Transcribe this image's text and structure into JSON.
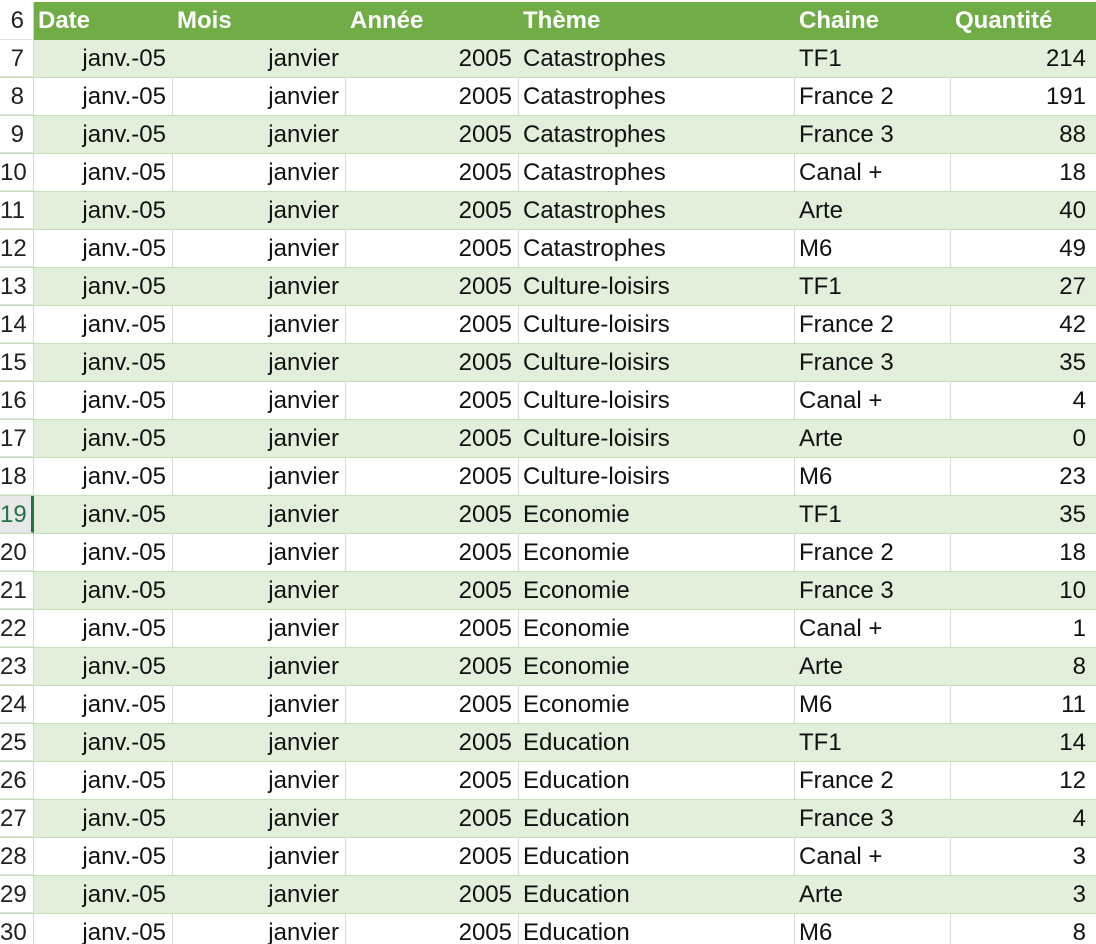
{
  "headers": {
    "row_number": "6",
    "date": "Date",
    "mois": "Mois",
    "annee": "Année",
    "theme": "Thème",
    "chaine": "Chaine",
    "quantite": "Quantité"
  },
  "active_row": "19",
  "rows": [
    {
      "n": "7",
      "date": "janv.-05",
      "mois": "janvier",
      "annee": "2005",
      "theme": "Catastrophes",
      "chaine": "TF1",
      "quantite": "214"
    },
    {
      "n": "8",
      "date": "janv.-05",
      "mois": "janvier",
      "annee": "2005",
      "theme": "Catastrophes",
      "chaine": "France 2",
      "quantite": "191"
    },
    {
      "n": "9",
      "date": "janv.-05",
      "mois": "janvier",
      "annee": "2005",
      "theme": "Catastrophes",
      "chaine": "France 3",
      "quantite": "88"
    },
    {
      "n": "10",
      "date": "janv.-05",
      "mois": "janvier",
      "annee": "2005",
      "theme": "Catastrophes",
      "chaine": "Canal +",
      "quantite": "18"
    },
    {
      "n": "11",
      "date": "janv.-05",
      "mois": "janvier",
      "annee": "2005",
      "theme": "Catastrophes",
      "chaine": "Arte",
      "quantite": "40"
    },
    {
      "n": "12",
      "date": "janv.-05",
      "mois": "janvier",
      "annee": "2005",
      "theme": "Catastrophes",
      "chaine": "M6",
      "quantite": "49"
    },
    {
      "n": "13",
      "date": "janv.-05",
      "mois": "janvier",
      "annee": "2005",
      "theme": "Culture-loisirs",
      "chaine": "TF1",
      "quantite": "27"
    },
    {
      "n": "14",
      "date": "janv.-05",
      "mois": "janvier",
      "annee": "2005",
      "theme": "Culture-loisirs",
      "chaine": "France 2",
      "quantite": "42"
    },
    {
      "n": "15",
      "date": "janv.-05",
      "mois": "janvier",
      "annee": "2005",
      "theme": "Culture-loisirs",
      "chaine": "France 3",
      "quantite": "35"
    },
    {
      "n": "16",
      "date": "janv.-05",
      "mois": "janvier",
      "annee": "2005",
      "theme": "Culture-loisirs",
      "chaine": "Canal +",
      "quantite": "4"
    },
    {
      "n": "17",
      "date": "janv.-05",
      "mois": "janvier",
      "annee": "2005",
      "theme": "Culture-loisirs",
      "chaine": "Arte",
      "quantite": "0"
    },
    {
      "n": "18",
      "date": "janv.-05",
      "mois": "janvier",
      "annee": "2005",
      "theme": "Culture-loisirs",
      "chaine": "M6",
      "quantite": "23"
    },
    {
      "n": "19",
      "date": "janv.-05",
      "mois": "janvier",
      "annee": "2005",
      "theme": "Economie",
      "chaine": "TF1",
      "quantite": "35"
    },
    {
      "n": "20",
      "date": "janv.-05",
      "mois": "janvier",
      "annee": "2005",
      "theme": "Economie",
      "chaine": "France 2",
      "quantite": "18"
    },
    {
      "n": "21",
      "date": "janv.-05",
      "mois": "janvier",
      "annee": "2005",
      "theme": "Economie",
      "chaine": "France 3",
      "quantite": "10"
    },
    {
      "n": "22",
      "date": "janv.-05",
      "mois": "janvier",
      "annee": "2005",
      "theme": "Economie",
      "chaine": "Canal +",
      "quantite": "1"
    },
    {
      "n": "23",
      "date": "janv.-05",
      "mois": "janvier",
      "annee": "2005",
      "theme": "Economie",
      "chaine": "Arte",
      "quantite": "8"
    },
    {
      "n": "24",
      "date": "janv.-05",
      "mois": "janvier",
      "annee": "2005",
      "theme": "Economie",
      "chaine": "M6",
      "quantite": "11"
    },
    {
      "n": "25",
      "date": "janv.-05",
      "mois": "janvier",
      "annee": "2005",
      "theme": "Education",
      "chaine": "TF1",
      "quantite": "14"
    },
    {
      "n": "26",
      "date": "janv.-05",
      "mois": "janvier",
      "annee": "2005",
      "theme": "Education",
      "chaine": "France 2",
      "quantite": "12"
    },
    {
      "n": "27",
      "date": "janv.-05",
      "mois": "janvier",
      "annee": "2005",
      "theme": "Education",
      "chaine": "France 3",
      "quantite": "4"
    },
    {
      "n": "28",
      "date": "janv.-05",
      "mois": "janvier",
      "annee": "2005",
      "theme": "Education",
      "chaine": "Canal +",
      "quantite": "3"
    },
    {
      "n": "29",
      "date": "janv.-05",
      "mois": "janvier",
      "annee": "2005",
      "theme": "Education",
      "chaine": "Arte",
      "quantite": "3"
    },
    {
      "n": "30",
      "date": "janv.-05",
      "mois": "janvier",
      "annee": "2005",
      "theme": "Education",
      "chaine": "M6",
      "quantite": "8"
    }
  ]
}
